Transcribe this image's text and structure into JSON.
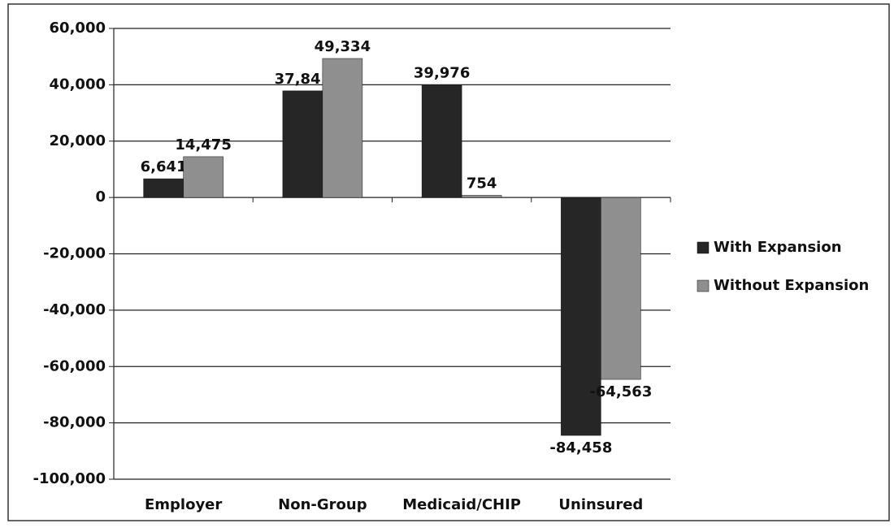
{
  "chart_data": {
    "type": "bar",
    "categories": [
      "Employer",
      "Non-Group",
      "Medicaid/CHIP",
      "Uninsured"
    ],
    "series": [
      {
        "name": "With Expansion",
        "color": "#262626",
        "values": [
          6641,
          37841,
          39976,
          -84458
        ],
        "value_labels": [
          "6,641",
          "37,841",
          "39,976",
          "-84,458"
        ]
      },
      {
        "name": "Without Expansion",
        "color": "#8f8f8f",
        "values": [
          14475,
          49334,
          754,
          -64563
        ],
        "value_labels": [
          "14,475",
          "49,334",
          "754",
          "-64,563"
        ]
      }
    ],
    "ylim": [
      -100000,
      60000
    ],
    "yticks": [
      {
        "value": -100000,
        "label": "-100,000"
      },
      {
        "value": -80000,
        "label": "-80,000"
      },
      {
        "value": -60000,
        "label": "-60,000"
      },
      {
        "value": -40000,
        "label": "-40,000"
      },
      {
        "value": -20000,
        "label": "-20,000"
      },
      0,
      {
        "value": 20000,
        "label": "20,000"
      },
      {
        "value": 40000,
        "label": "40,000"
      },
      {
        "value": 60000,
        "label": "60,000"
      }
    ],
    "grid": true,
    "legend": "right"
  }
}
